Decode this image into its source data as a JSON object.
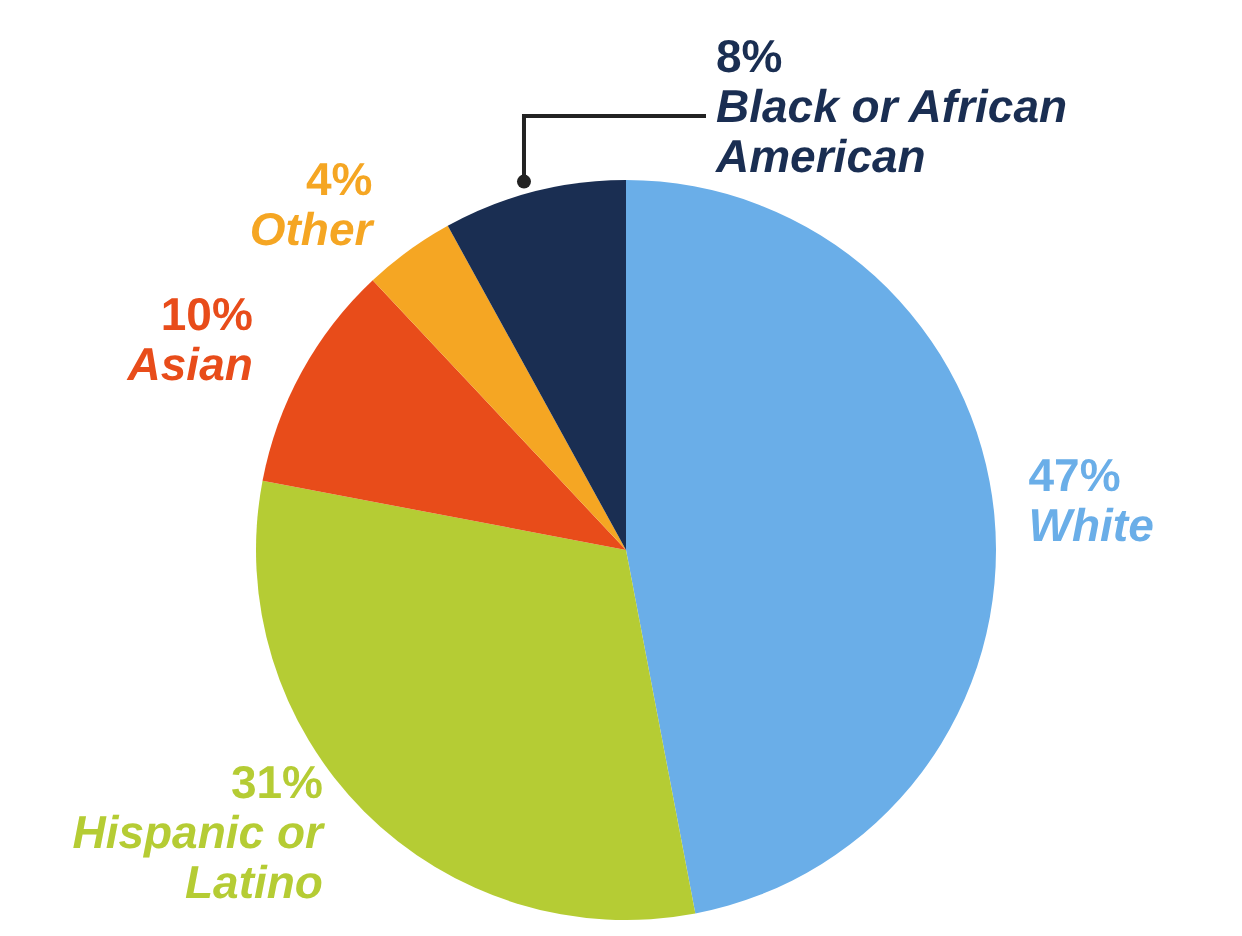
{
  "chart_data": {
    "type": "pie",
    "categories": [
      "White",
      "Hispanic or Latino",
      "Asian",
      "Other",
      "Black or African American"
    ],
    "values": [
      47,
      31,
      10,
      4,
      8
    ],
    "value_labels": [
      "47%",
      "31%",
      "10%",
      "4%",
      "8%"
    ],
    "colors": [
      "#6aaee8",
      "#b5cc34",
      "#e84c1a",
      "#f5a623",
      "#1a2e52"
    ],
    "legend": false
  }
}
